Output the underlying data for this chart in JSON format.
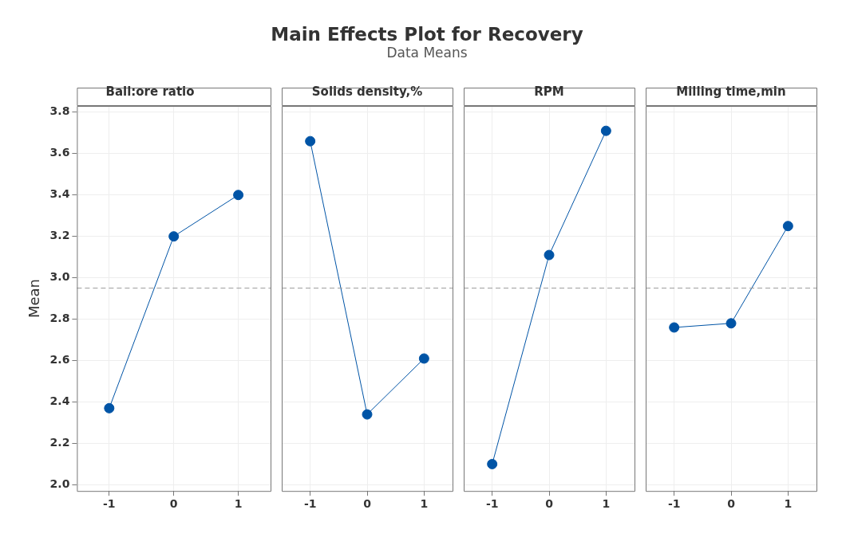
{
  "chart_data": [
    {
      "type": "line",
      "title": "Ball:ore ratio",
      "ylabel": "Mean",
      "annotations": [
        "Main Effects Plot for Recovery",
        "Data Means"
      ],
      "categories": [
        "-1",
        "0",
        "1"
      ],
      "series": [
        {
          "color": "#0054a6",
          "values": [
            2.37,
            3.2,
            3.4
          ]
        }
      ],
      "ylim": [
        1.97,
        3.83
      ],
      "yticks": [
        {
          "value": 2,
          "label": "2.0"
        },
        2.2,
        2.4,
        2.6,
        2.8,
        {
          "value": 3,
          "label": "3.0"
        },
        3.2,
        3.4,
        3.6,
        3.8
      ],
      "ref_lines": [
        {
          "axis": "y",
          "value": 2.95,
          "color": "#999999",
          "line_style": "dashed"
        }
      ],
      "grid": true,
      "marker": "circle",
      "line_style": "solid"
    },
    {
      "type": "line",
      "title": "Solids density,%",
      "categories": [
        "-1",
        "0",
        "1"
      ],
      "series": [
        {
          "color": "#0054a6",
          "values": [
            3.66,
            2.34,
            2.61
          ]
        }
      ],
      "ylim": [
        1.97,
        3.83
      ],
      "yticks": [
        {
          "value": 2,
          "label": null
        },
        {
          "value": 2.2,
          "label": null
        },
        {
          "value": 2.4,
          "label": null
        },
        {
          "value": 2.6,
          "label": null
        },
        {
          "value": 2.8,
          "label": null
        },
        {
          "value": 3,
          "label": null
        },
        {
          "value": 3.2,
          "label": null
        },
        {
          "value": 3.4,
          "label": null
        },
        {
          "value": 3.6,
          "label": null
        },
        {
          "value": 3.8,
          "label": null
        }
      ],
      "ref_lines": [
        {
          "axis": "y",
          "value": 2.95,
          "color": "#999999",
          "line_style": "dashed"
        }
      ],
      "grid": true,
      "marker": "circle",
      "line_style": "solid",
      "tick_labels": "x"
    },
    {
      "type": "line",
      "title": "RPM",
      "categories": [
        "-1",
        "0",
        "1"
      ],
      "series": [
        {
          "color": "#0054a6",
          "values": [
            2.1,
            3.11,
            3.71
          ]
        }
      ],
      "ylim": [
        1.97,
        3.83
      ],
      "yticks": [
        {
          "value": 2,
          "label": null
        },
        {
          "value": 2.2,
          "label": null
        },
        {
          "value": 2.4,
          "label": null
        },
        {
          "value": 2.6,
          "label": null
        },
        {
          "value": 2.8,
          "label": null
        },
        {
          "value": 3,
          "label": null
        },
        {
          "value": 3.2,
          "label": null
        },
        {
          "value": 3.4,
          "label": null
        },
        {
          "value": 3.6,
          "label": null
        },
        {
          "value": 3.8,
          "label": null
        }
      ],
      "ref_lines": [
        {
          "axis": "y",
          "value": 2.95,
          "color": "#999999",
          "line_style": "dashed"
        }
      ],
      "grid": true,
      "marker": "circle",
      "line_style": "solid",
      "tick_labels": "x"
    },
    {
      "type": "line",
      "title": "Milling time,min",
      "categories": [
        "-1",
        "0",
        "1"
      ],
      "series": [
        {
          "color": "#0054a6",
          "values": [
            2.76,
            2.78,
            3.25
          ]
        }
      ],
      "ylim": [
        1.97,
        3.83
      ],
      "yticks": [
        {
          "value": 2,
          "label": null
        },
        {
          "value": 2.2,
          "label": null
        },
        {
          "value": 2.4,
          "label": null
        },
        {
          "value": 2.6,
          "label": null
        },
        {
          "value": 2.8,
          "label": null
        },
        {
          "value": 3,
          "label": null
        },
        {
          "value": 3.2,
          "label": null
        },
        {
          "value": 3.4,
          "label": null
        },
        {
          "value": 3.6,
          "label": null
        },
        {
          "value": 3.8,
          "label": null
        }
      ],
      "ref_lines": [
        {
          "axis": "y",
          "value": 2.95,
          "color": "#999999",
          "line_style": "dashed"
        }
      ],
      "grid": true,
      "marker": "circle",
      "line_style": "solid",
      "tick_labels": "x"
    }
  ]
}
